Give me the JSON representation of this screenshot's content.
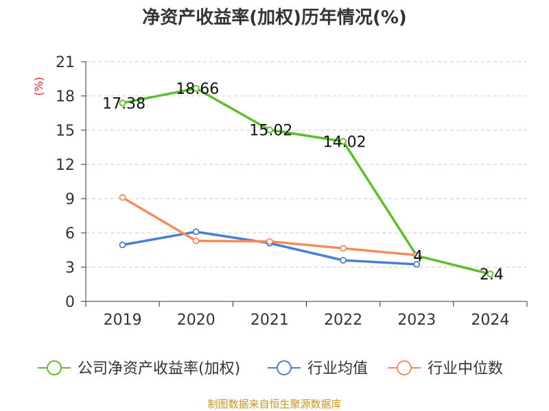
{
  "chart_data": {
    "type": "line",
    "title": "净资产收益率(加权)历年情况(%)",
    "ylabel": "(%)",
    "xlabel": "",
    "categories": [
      "2019",
      "2020",
      "2021",
      "2022",
      "2023",
      "2024"
    ],
    "ylim": [
      0,
      21
    ],
    "yticks": [
      0,
      3,
      6,
      9,
      12,
      15,
      18,
      21
    ],
    "grid": true,
    "legend_position": "bottom",
    "series": [
      {
        "name": "公司净资产收益率(加权)",
        "color": "#5cbf27",
        "values": [
          17.38,
          18.66,
          15.02,
          14.02,
          4,
          2.4
        ],
        "labels": [
          "17.38",
          "18.66",
          "15.02",
          "14.02",
          "4",
          "2.4"
        ]
      },
      {
        "name": "行业均值",
        "color": "#4a7fd6",
        "values": [
          4.95,
          6.1,
          5.1,
          3.6,
          3.25,
          null
        ],
        "labels": []
      },
      {
        "name": "行业中位数",
        "color": "#f58b59",
        "values": [
          9.1,
          5.3,
          5.25,
          4.65,
          4.05,
          null
        ],
        "labels": []
      }
    ]
  },
  "source": "制图数据来自恒生聚源数据库"
}
